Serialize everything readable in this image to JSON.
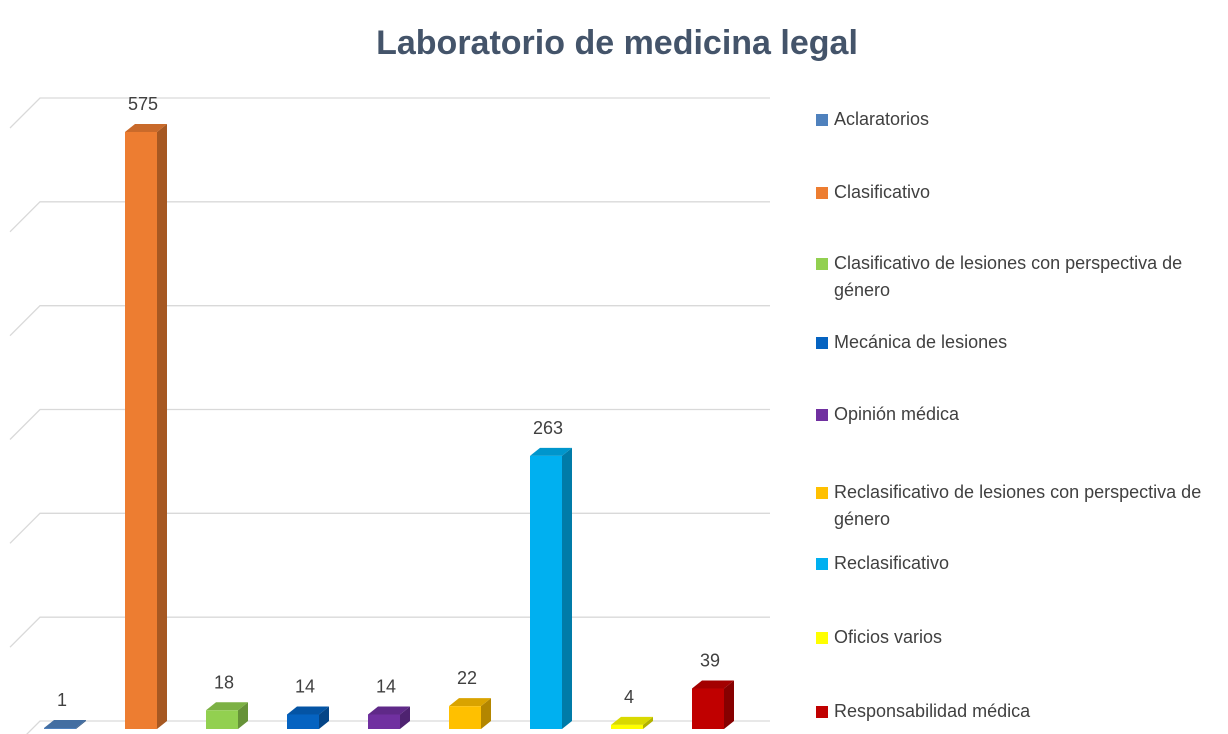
{
  "chart_data": {
    "type": "bar3d",
    "title": "Laboratorio de medicina legal",
    "series": [
      {
        "name": "Aclaratorios",
        "color": "#4f81bd",
        "values": [
          1
        ]
      },
      {
        "name": "Clasificativo",
        "color": "#ed7d31",
        "values": [
          575
        ]
      },
      {
        "name": "Clasificativo de lesiones con perspectiva de género",
        "color": "#92d050",
        "values": [
          18
        ]
      },
      {
        "name": "Mecánica de lesiones",
        "color": "#0563c1",
        "values": [
          14
        ]
      },
      {
        "name": "Opinión médica",
        "color": "#7030a0",
        "values": [
          14
        ]
      },
      {
        "name": "Reclasificativo de lesiones con perspectiva de género",
        "color": "#ffc000",
        "values": [
          22
        ]
      },
      {
        "name": "Reclasificativo",
        "color": "#00b0f0",
        "values": [
          263
        ]
      },
      {
        "name": "Oficios varios",
        "color": "#ffff00",
        "values": [
          4
        ]
      },
      {
        "name": "Responsabilidad médica",
        "color": "#c00000",
        "values": [
          39
        ]
      }
    ],
    "ylim": [
      0,
      600
    ],
    "yticks": [
      0,
      100,
      200,
      300,
      400,
      500,
      600
    ],
    "grid": true
  }
}
